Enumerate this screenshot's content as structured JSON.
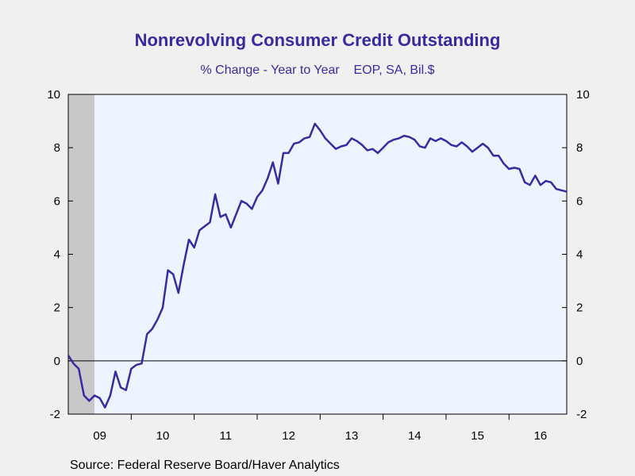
{
  "title": "Nonrevolving Consumer Credit Outstanding",
  "subtitle": "% Change - Year to Year    EOP, SA, Bil.$",
  "source": "Source:  Federal Reserve Board/Haver Analytics",
  "colors": {
    "line": "#3a2aa0",
    "plot_bg": "#eef4ff",
    "recession": "#c8c8c8",
    "title": "#3a2aa0"
  },
  "chart_data": {
    "type": "line",
    "title": "Nonrevolving Consumer Credit Outstanding",
    "subtitle": "% Change - Year to Year    EOP, SA, Bil.$",
    "xlabel": "",
    "ylabel": "",
    "ylim": [
      -2,
      10
    ],
    "xlim": [
      "2009-01",
      "2016-12"
    ],
    "yticks": [
      -2,
      0,
      2,
      4,
      6,
      8,
      10
    ],
    "xtick_labels": [
      "09",
      "10",
      "11",
      "12",
      "13",
      "14",
      "15",
      "16"
    ],
    "grid": false,
    "zero_line": true,
    "recession_shading": {
      "start": "2009-01",
      "end": "2009-06"
    },
    "series": [
      {
        "x": [
          "2009-01",
          "2009-02",
          "2009-03",
          "2009-04",
          "2009-05",
          "2009-06",
          "2009-07",
          "2009-08",
          "2009-09",
          "2009-10",
          "2009-11",
          "2009-12",
          "2010-01",
          "2010-02",
          "2010-03",
          "2010-04",
          "2010-05",
          "2010-06",
          "2010-07",
          "2010-08",
          "2010-09",
          "2010-10",
          "2010-11",
          "2010-12",
          "2011-01",
          "2011-02",
          "2011-03",
          "2011-04",
          "2011-05",
          "2011-06",
          "2011-07",
          "2011-08",
          "2011-09",
          "2011-10",
          "2011-11",
          "2011-12",
          "2012-01",
          "2012-02",
          "2012-03",
          "2012-04",
          "2012-05",
          "2012-06",
          "2012-07",
          "2012-08",
          "2012-09",
          "2012-10",
          "2012-11",
          "2012-12",
          "2013-01",
          "2013-02",
          "2013-03",
          "2013-04",
          "2013-05",
          "2013-06",
          "2013-07",
          "2013-08",
          "2013-09",
          "2013-10",
          "2013-11",
          "2013-12",
          "2014-01",
          "2014-02",
          "2014-03",
          "2014-04",
          "2014-05",
          "2014-06",
          "2014-07",
          "2014-08",
          "2014-09",
          "2014-10",
          "2014-11",
          "2014-12",
          "2015-01",
          "2015-02",
          "2015-03",
          "2015-04",
          "2015-05",
          "2015-06",
          "2015-07",
          "2015-08",
          "2015-09",
          "2015-10",
          "2015-11",
          "2015-12",
          "2016-01",
          "2016-02",
          "2016-03",
          "2016-04",
          "2016-05",
          "2016-06",
          "2016-07",
          "2016-08",
          "2016-09",
          "2016-10",
          "2016-11",
          "2016-12"
        ],
        "values": [
          0.2,
          -0.1,
          -0.3,
          -1.3,
          -1.5,
          -1.3,
          -1.4,
          -1.75,
          -1.3,
          -0.4,
          -1.0,
          -1.1,
          -0.3,
          -0.15,
          -0.1,
          1.0,
          1.2,
          1.55,
          2.0,
          3.4,
          3.25,
          2.55,
          3.6,
          4.55,
          4.25,
          4.9,
          5.05,
          5.2,
          6.25,
          5.4,
          5.5,
          5.0,
          5.5,
          6.0,
          5.9,
          5.7,
          6.15,
          6.4,
          6.85,
          7.45,
          6.65,
          7.8,
          7.8,
          8.15,
          8.2,
          8.35,
          8.4,
          8.9,
          8.65,
          8.35,
          8.15,
          7.95,
          8.05,
          8.1,
          8.35,
          8.25,
          8.1,
          7.9,
          7.95,
          7.8,
          8.0,
          8.2,
          8.3,
          8.35,
          8.45,
          8.4,
          8.3,
          8.05,
          8.0,
          8.35,
          8.25,
          8.35,
          8.25,
          8.1,
          8.05,
          8.2,
          8.05,
          7.85,
          8.0,
          8.15,
          8.0,
          7.7,
          7.7,
          7.4,
          7.2,
          7.25,
          7.2,
          6.7,
          6.6,
          6.95,
          6.6,
          6.75,
          6.7,
          6.45,
          6.4,
          6.35
        ]
      }
    ]
  }
}
